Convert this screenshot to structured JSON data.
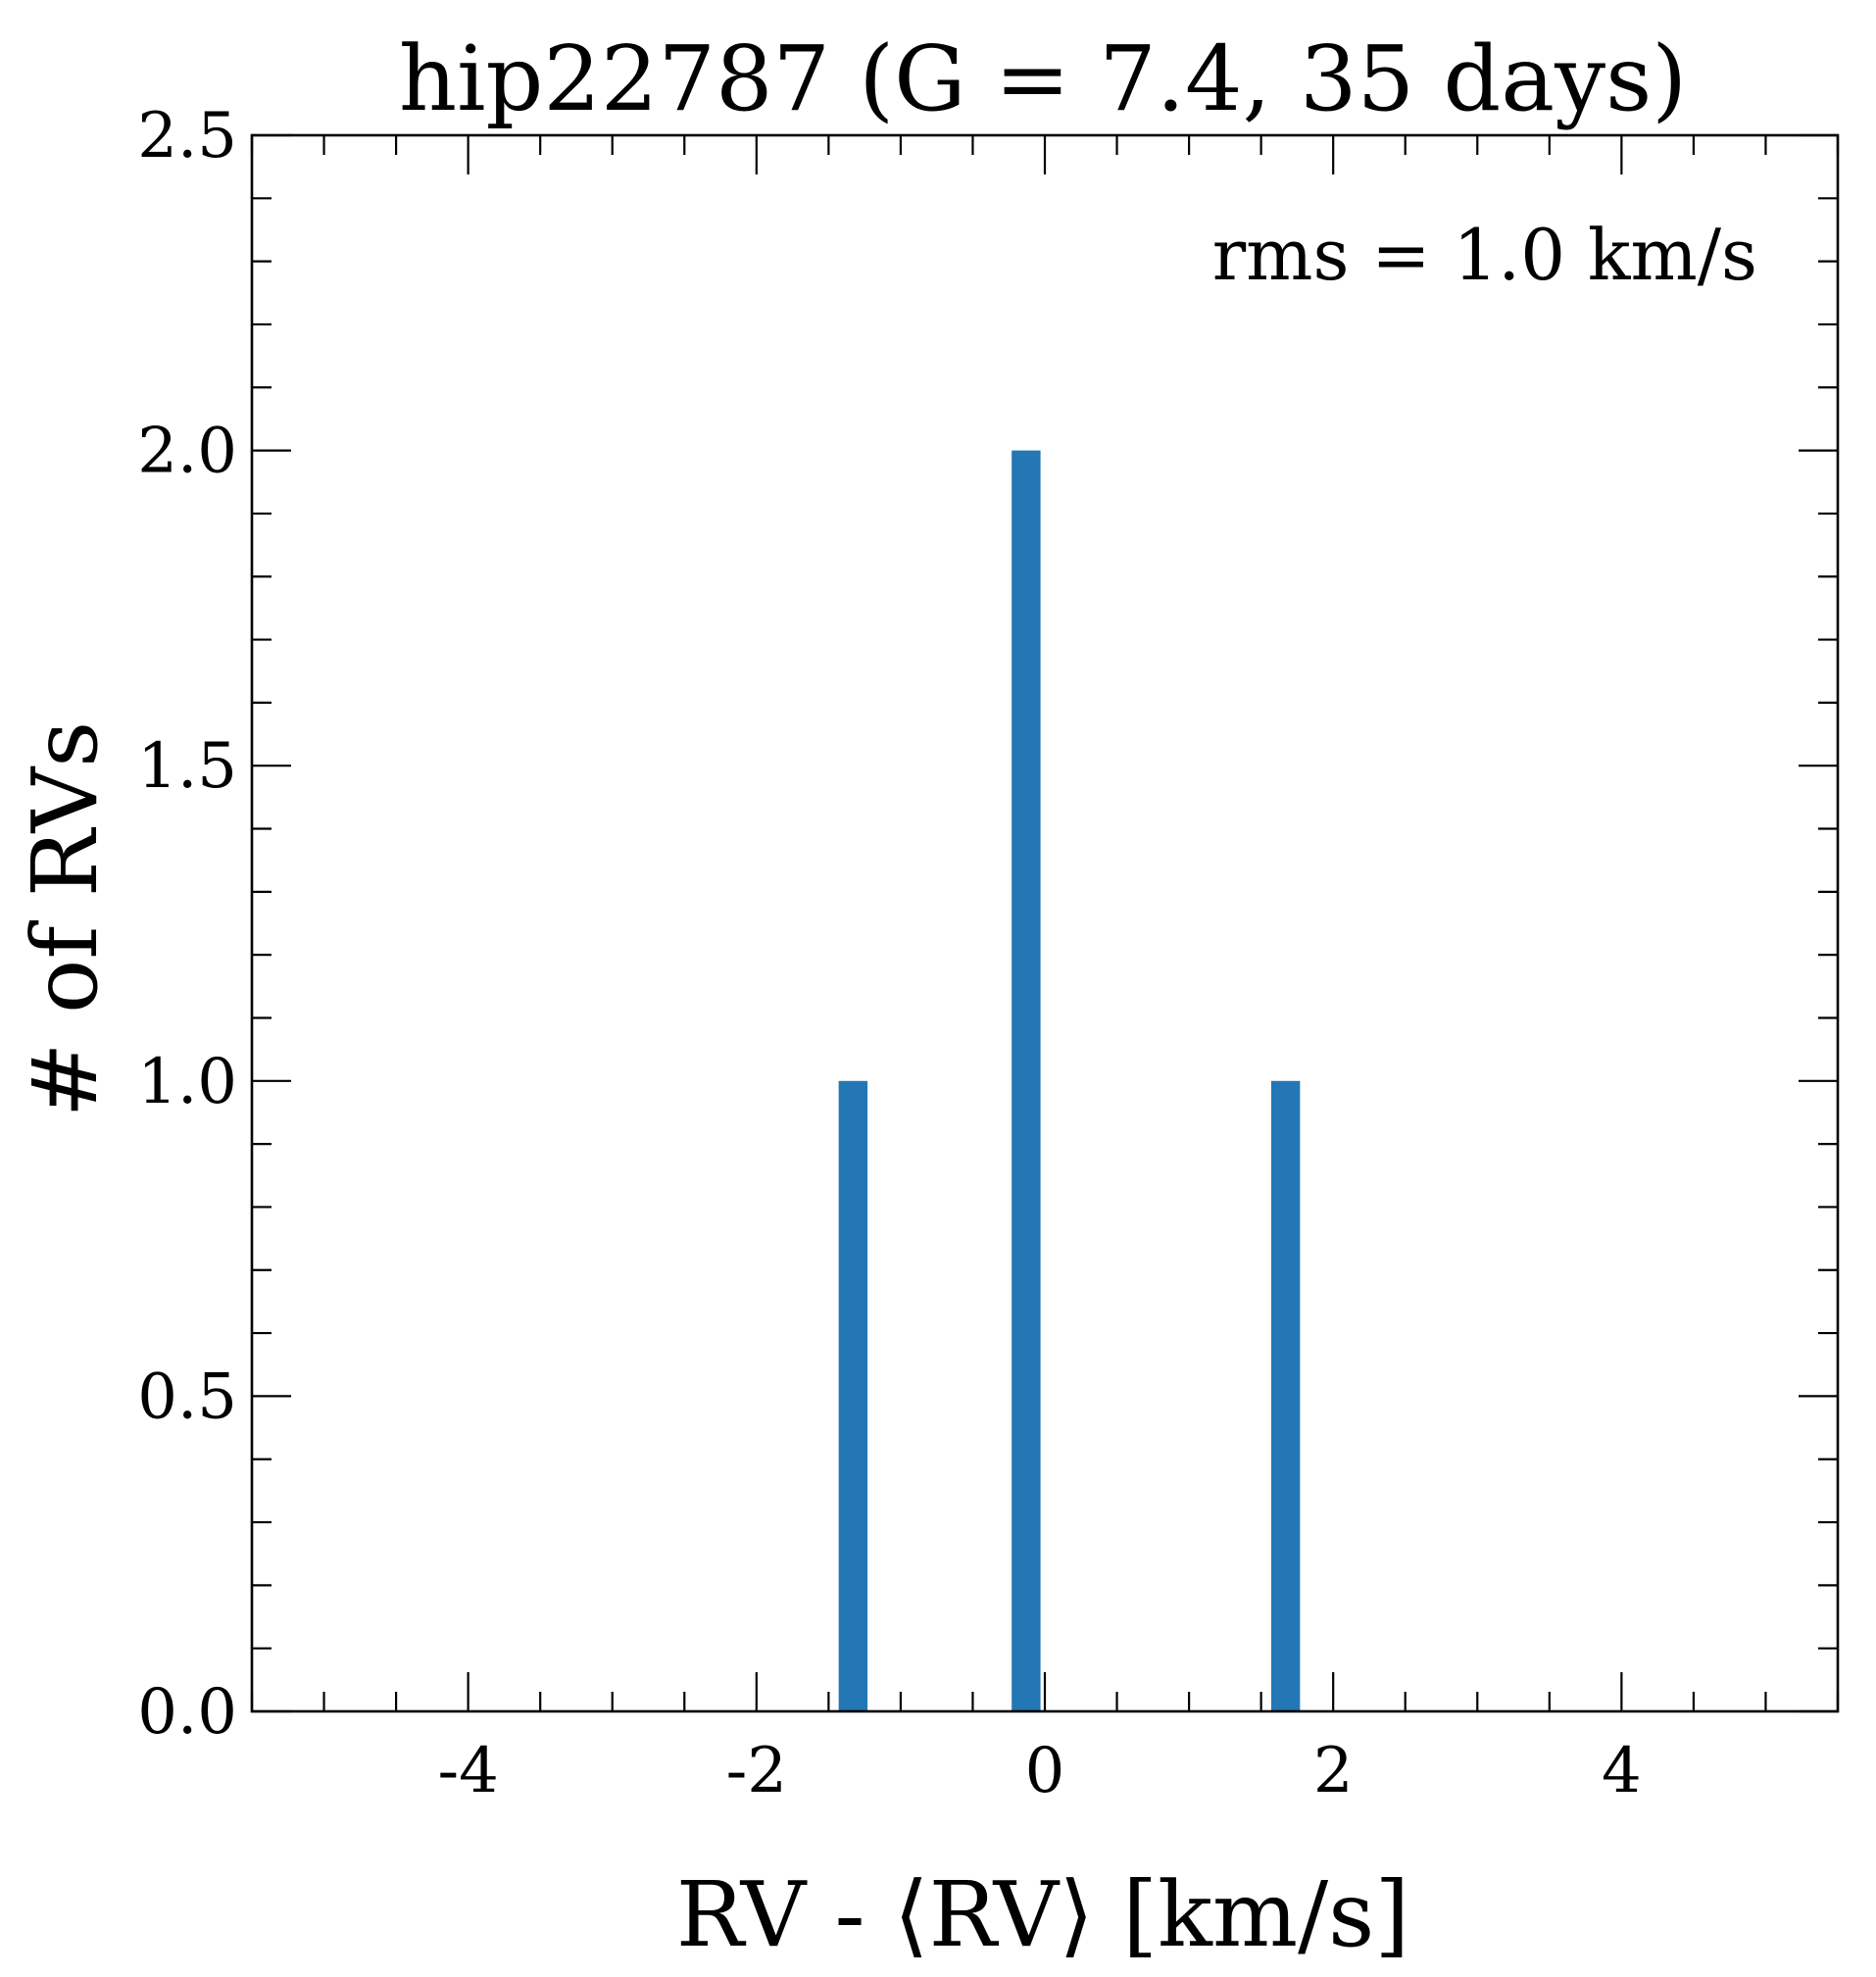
{
  "chart_data": {
    "type": "bar",
    "title": "hip22787 (G = 7.4, 35 days)",
    "xlabel": "RV - ⟨RV⟩ [km/s]",
    "ylabel": "# of RVs",
    "annotation": "rms = 1.0 km/s",
    "xlim": [
      -5.5,
      5.5
    ],
    "ylim": [
      0,
      2.5
    ],
    "xticks": [
      -4,
      -2,
      0,
      2,
      4
    ],
    "xtick_labels": [
      "-4",
      "-2",
      "0",
      "2",
      "4"
    ],
    "xminor_step": 0.5,
    "yticks": [
      0.0,
      0.5,
      1.0,
      1.5,
      2.0,
      2.5
    ],
    "ytick_labels": [
      "0.0",
      "0.5",
      "1.0",
      "1.5",
      "2.0",
      "2.5"
    ],
    "yminor_step": 0.1,
    "bar_color": "#2377b4",
    "bins": [
      {
        "left": -1.43,
        "right": -1.23,
        "count": 1
      },
      {
        "left": -0.23,
        "right": -0.03,
        "count": 2
      },
      {
        "left": 1.57,
        "right": 1.77,
        "count": 1
      }
    ],
    "grid": false,
    "legend": "none"
  }
}
